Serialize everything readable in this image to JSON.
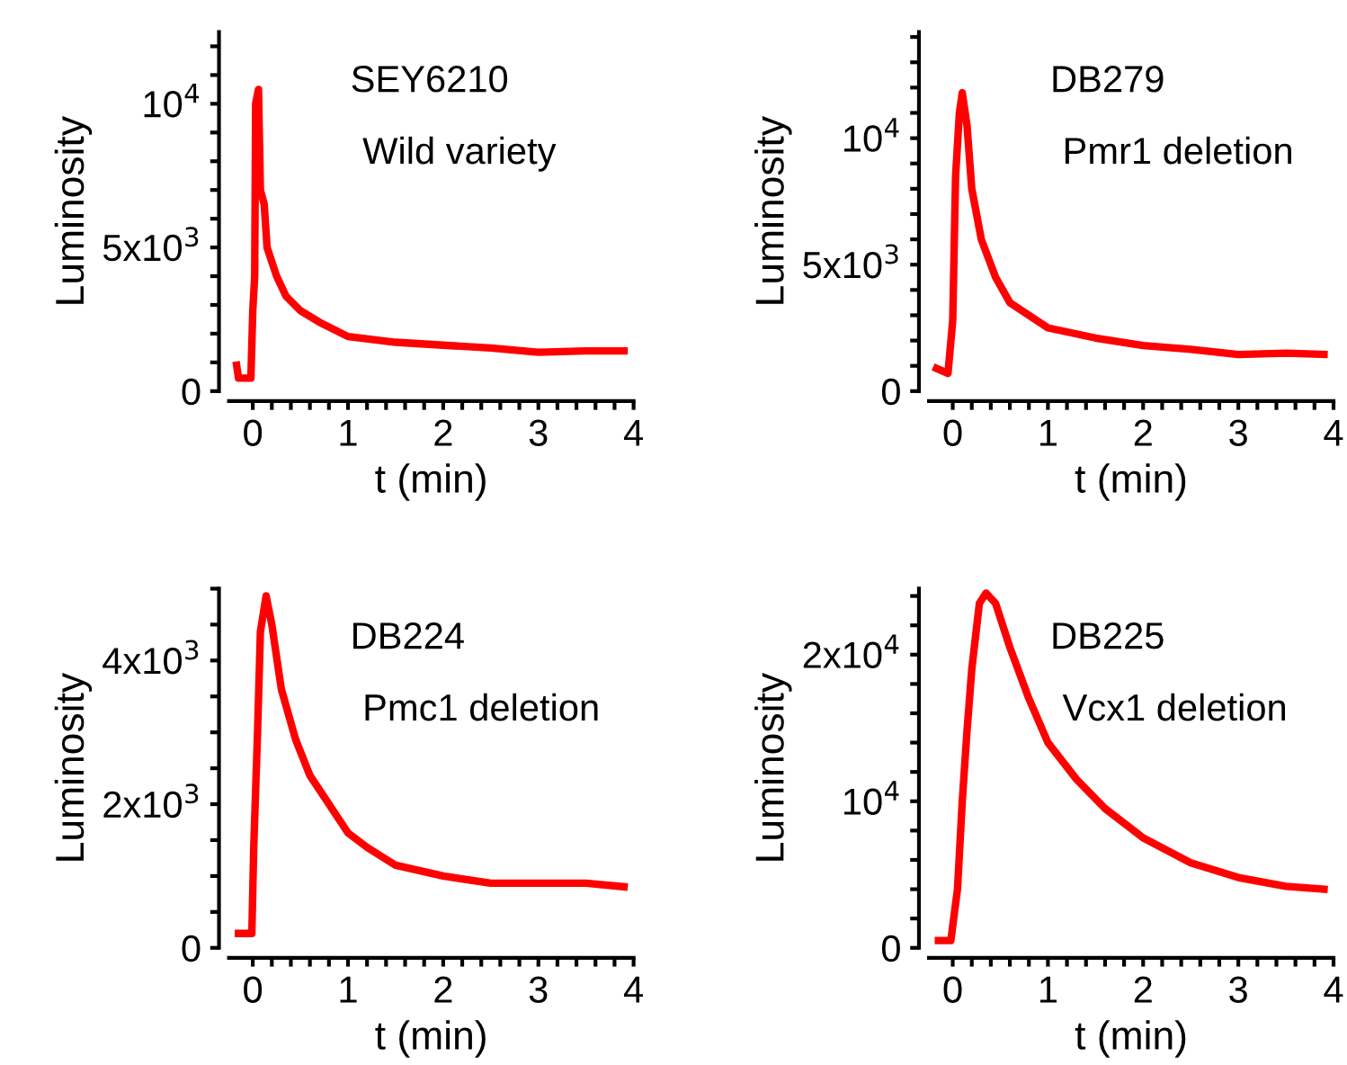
{
  "chart_data": [
    {
      "type": "line",
      "xlabel": "t (min)",
      "ylabel": "Luminosity",
      "annotations": [
        "SEY6210",
        "Wild variety"
      ],
      "grid": false,
      "legend": false,
      "marker": "none",
      "line_style": "solid",
      "xlim": [
        -0.25,
        4.0
      ],
      "xticks": [
        0,
        {
          "value": 0.2,
          "label": null
        },
        {
          "value": 0.4,
          "label": null
        },
        {
          "value": 0.6,
          "label": null
        },
        {
          "value": 0.8,
          "label": null
        },
        1,
        {
          "value": 1.2,
          "label": null
        },
        {
          "value": 1.4,
          "label": null
        },
        {
          "value": 1.6,
          "label": null
        },
        {
          "value": 1.8,
          "label": null
        },
        2,
        {
          "value": 2.2,
          "label": null
        },
        {
          "value": 2.4,
          "label": null
        },
        {
          "value": 2.6,
          "label": null
        },
        {
          "value": 2.8,
          "label": null
        },
        3,
        {
          "value": 3.2,
          "label": null
        },
        {
          "value": 3.4,
          "label": null
        },
        {
          "value": 3.6,
          "label": null
        },
        {
          "value": 3.8,
          "label": null
        },
        4
      ],
      "ylim": [
        0,
        12500
      ],
      "yticks": [
        0,
        {
          "value": 1000,
          "label": null
        },
        {
          "value": 2000,
          "label": null
        },
        {
          "value": 3000,
          "label": null
        },
        {
          "value": 4000,
          "label": null
        },
        {
          "value": 5000,
          "label": "5x10$^{3}$"
        },
        {
          "value": 6000,
          "label": null
        },
        {
          "value": 7000,
          "label": null
        },
        {
          "value": 8000,
          "label": null
        },
        {
          "value": 9000,
          "label": null
        },
        {
          "value": 10000,
          "label": "10$^{4}$"
        },
        {
          "value": 11000,
          "label": null
        },
        {
          "value": 12000,
          "label": null
        }
      ],
      "series": [
        {
          "color": "#ff0000",
          "x": [
            -0.17,
            -0.15,
            -0.02,
            0.0,
            0.02,
            0.03,
            0.06,
            0.08,
            0.12,
            0.15,
            0.25,
            0.35,
            0.5,
            0.7,
            1.0,
            1.5,
            2.0,
            2.5,
            3.0,
            3.5,
            3.9
          ],
          "values": [
            900,
            450,
            450,
            2800,
            4000,
            10000,
            10500,
            7000,
            6500,
            5000,
            4000,
            3300,
            2800,
            2400,
            1900,
            1700,
            1600,
            1500,
            1350,
            1400,
            1400
          ]
        }
      ]
    },
    {
      "type": "line",
      "xlabel": "t (min)",
      "ylabel": "Luminosity",
      "annotations": [
        "DB279",
        "Pmr1 deletion"
      ],
      "grid": false,
      "legend": false,
      "marker": "none",
      "line_style": "solid",
      "xlim": [
        -0.25,
        4.0
      ],
      "xticks": [
        0,
        {
          "value": 0.2,
          "label": null
        },
        {
          "value": 0.4,
          "label": null
        },
        {
          "value": 0.6,
          "label": null
        },
        {
          "value": 0.8,
          "label": null
        },
        1,
        {
          "value": 1.2,
          "label": null
        },
        {
          "value": 1.4,
          "label": null
        },
        {
          "value": 1.6,
          "label": null
        },
        {
          "value": 1.8,
          "label": null
        },
        2,
        {
          "value": 2.2,
          "label": null
        },
        {
          "value": 2.4,
          "label": null
        },
        {
          "value": 2.6,
          "label": null
        },
        {
          "value": 2.8,
          "label": null
        },
        3,
        {
          "value": 3.2,
          "label": null
        },
        {
          "value": 3.4,
          "label": null
        },
        {
          "value": 3.6,
          "label": null
        },
        {
          "value": 3.8,
          "label": null
        },
        4
      ],
      "ylim": [
        0,
        14200
      ],
      "yticks": [
        0,
        {
          "value": 1000,
          "label": null
        },
        {
          "value": 2000,
          "label": null
        },
        {
          "value": 3000,
          "label": null
        },
        {
          "value": 4000,
          "label": null
        },
        {
          "value": 5000,
          "label": "5x10$^{3}$"
        },
        {
          "value": 6000,
          "label": null
        },
        {
          "value": 7000,
          "label": null
        },
        {
          "value": 8000,
          "label": null
        },
        {
          "value": 9000,
          "label": null
        },
        {
          "value": 10000,
          "label": "10$^{4}$"
        },
        {
          "value": 11000,
          "label": null
        },
        {
          "value": 12000,
          "label": null
        },
        {
          "value": 13000,
          "label": null
        },
        {
          "value": 14000,
          "label": null
        }
      ],
      "series": [
        {
          "color": "#ff0000",
          "x": [
            -0.17,
            -0.05,
            0.0,
            0.03,
            0.07,
            0.1,
            0.15,
            0.2,
            0.3,
            0.45,
            0.6,
            0.8,
            1.0,
            1.5,
            2.0,
            2.5,
            3.0,
            3.5,
            3.9
          ],
          "values": [
            900,
            700,
            2800,
            8500,
            11000,
            11800,
            10500,
            8000,
            6000,
            4500,
            3500,
            3000,
            2500,
            2100,
            1800,
            1650,
            1450,
            1500,
            1450
          ]
        }
      ]
    },
    {
      "type": "line",
      "xlabel": "t (min)",
      "ylabel": "Luminosity",
      "annotations": [
        "DB224",
        "Pmc1 deletion"
      ],
      "grid": false,
      "legend": false,
      "marker": "none",
      "line_style": "solid",
      "xlim": [
        -0.25,
        4.0
      ],
      "xticks": [
        0,
        {
          "value": 0.2,
          "label": null
        },
        {
          "value": 0.4,
          "label": null
        },
        {
          "value": 0.6,
          "label": null
        },
        {
          "value": 0.8,
          "label": null
        },
        1,
        {
          "value": 1.2,
          "label": null
        },
        {
          "value": 1.4,
          "label": null
        },
        {
          "value": 1.6,
          "label": null
        },
        {
          "value": 1.8,
          "label": null
        },
        2,
        {
          "value": 2.2,
          "label": null
        },
        {
          "value": 2.4,
          "label": null
        },
        {
          "value": 2.6,
          "label": null
        },
        {
          "value": 2.8,
          "label": null
        },
        3,
        {
          "value": 3.2,
          "label": null
        },
        {
          "value": 3.4,
          "label": null
        },
        {
          "value": 3.6,
          "label": null
        },
        {
          "value": 3.8,
          "label": null
        },
        4
      ],
      "ylim": [
        0,
        5000
      ],
      "yticks": [
        0,
        {
          "value": 500,
          "label": null
        },
        {
          "value": 1000,
          "label": null
        },
        {
          "value": 1500,
          "label": null
        },
        {
          "value": 2000,
          "label": "2x10$^{3}$"
        },
        {
          "value": 2500,
          "label": null
        },
        {
          "value": 3000,
          "label": null
        },
        {
          "value": 3500,
          "label": null
        },
        {
          "value": 4000,
          "label": "4x10$^{3}$"
        },
        {
          "value": 4500,
          "label": null
        },
        {
          "value": 5000,
          "label": null
        }
      ],
      "series": [
        {
          "color": "#ff0000",
          "x": [
            -0.15,
            -0.01,
            0.01,
            0.05,
            0.08,
            0.14,
            0.2,
            0.3,
            0.45,
            0.6,
            0.8,
            1.0,
            1.2,
            1.5,
            2.0,
            2.5,
            3.0,
            3.5,
            3.9
          ],
          "values": [
            200,
            200,
            1400,
            3000,
            4400,
            4900,
            4500,
            3600,
            2900,
            2400,
            2000,
            1600,
            1400,
            1150,
            1000,
            900,
            900,
            900,
            850
          ]
        }
      ]
    },
    {
      "type": "line",
      "xlabel": "t (min)",
      "ylabel": "Luminosity",
      "annotations": [
        "DB225",
        "Vcx1 deletion"
      ],
      "grid": false,
      "legend": false,
      "marker": "none",
      "line_style": "solid",
      "xlim": [
        -0.25,
        4.0
      ],
      "xticks": [
        0,
        {
          "value": 0.2,
          "label": null
        },
        {
          "value": 0.4,
          "label": null
        },
        {
          "value": 0.6,
          "label": null
        },
        {
          "value": 0.8,
          "label": null
        },
        1,
        {
          "value": 1.2,
          "label": null
        },
        {
          "value": 1.4,
          "label": null
        },
        {
          "value": 1.6,
          "label": null
        },
        {
          "value": 1.8,
          "label": null
        },
        2,
        {
          "value": 2.2,
          "label": null
        },
        {
          "value": 2.4,
          "label": null
        },
        {
          "value": 2.6,
          "label": null
        },
        {
          "value": 2.8,
          "label": null
        },
        3,
        {
          "value": 3.2,
          "label": null
        },
        {
          "value": 3.4,
          "label": null
        },
        {
          "value": 3.6,
          "label": null
        },
        {
          "value": 3.8,
          "label": null
        },
        4
      ],
      "ylim": [
        0,
        24500
      ],
      "yticks": [
        0,
        {
          "value": 2000,
          "label": null
        },
        {
          "value": 4000,
          "label": null
        },
        {
          "value": 6000,
          "label": null
        },
        {
          "value": 8000,
          "label": null
        },
        {
          "value": 10000,
          "label": "10$^{4}$"
        },
        {
          "value": 12000,
          "label": null
        },
        {
          "value": 14000,
          "label": null
        },
        {
          "value": 16000,
          "label": null
        },
        {
          "value": 18000,
          "label": null
        },
        {
          "value": 20000,
          "label": "2x10$^{4}$"
        },
        {
          "value": 22000,
          "label": null
        },
        {
          "value": 24000,
          "label": null
        }
      ],
      "series": [
        {
          "color": "#ff0000",
          "x": [
            -0.15,
            -0.02,
            0.05,
            0.1,
            0.15,
            0.2,
            0.28,
            0.35,
            0.45,
            0.6,
            0.8,
            1.0,
            1.3,
            1.6,
            2.0,
            2.5,
            3.0,
            3.5,
            3.9
          ],
          "values": [
            500,
            500,
            4000,
            10000,
            14800,
            19000,
            23500,
            24200,
            23500,
            20500,
            17000,
            14000,
            11500,
            9500,
            7500,
            5800,
            4800,
            4200,
            4000
          ]
        }
      ]
    }
  ]
}
